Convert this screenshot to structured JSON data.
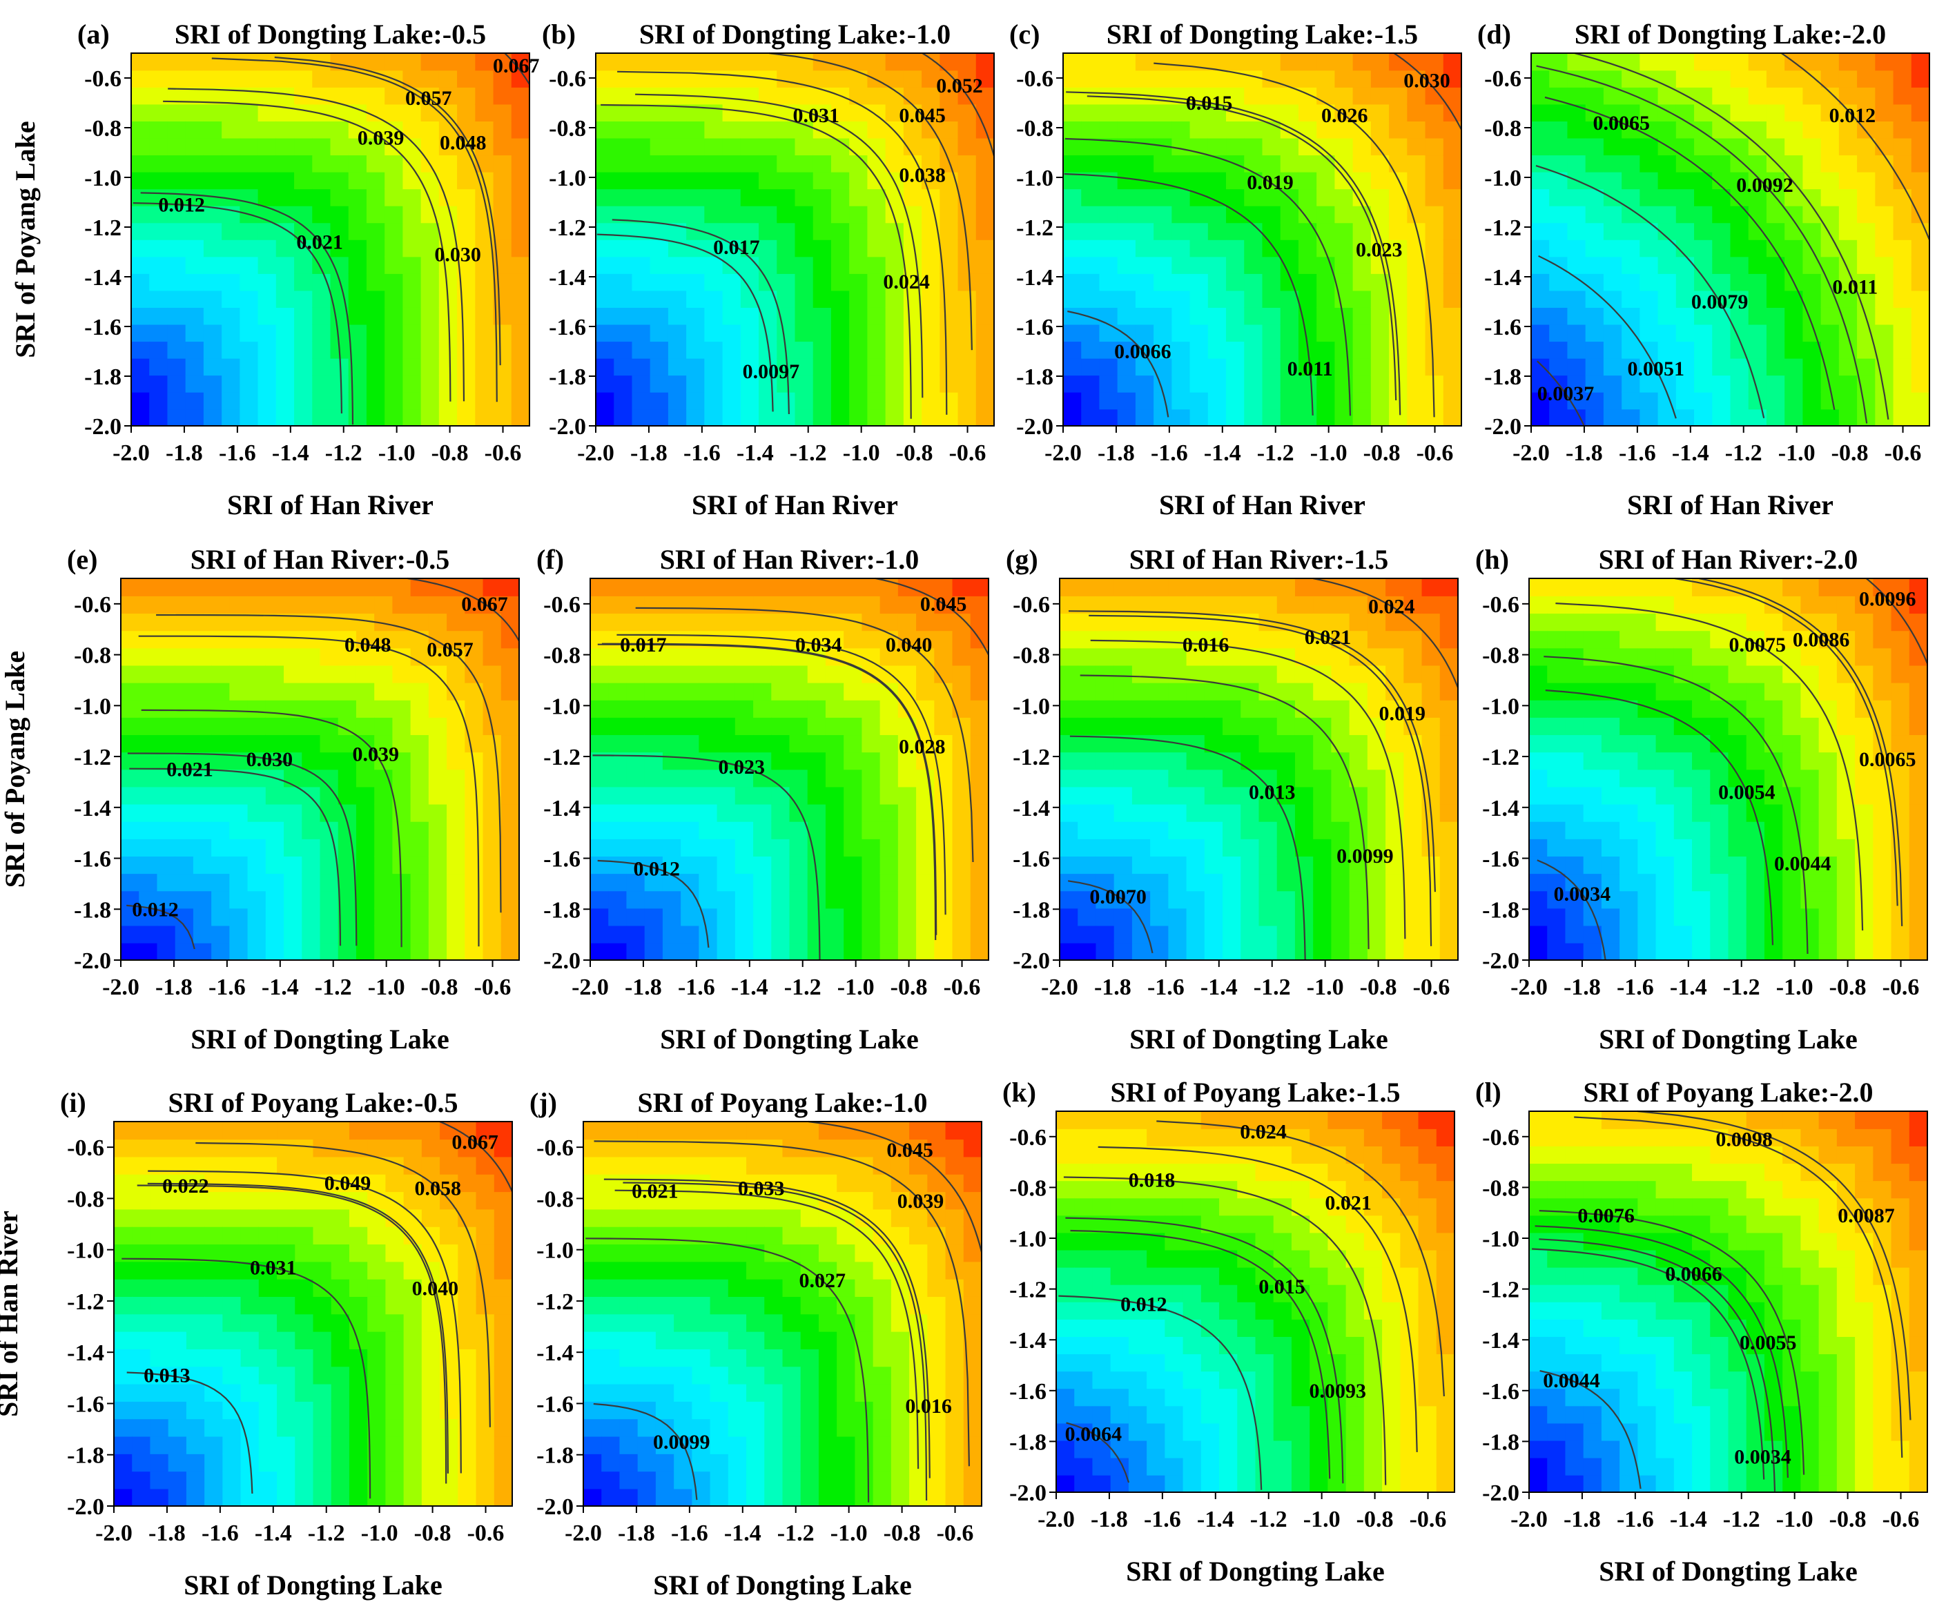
{
  "figure": {
    "background": "#ffffff",
    "colormap": [
      "#0000ff",
      "#0066ff",
      "#00ccff",
      "#00ffff",
      "#00ff99",
      "#00ee00",
      "#66ff00",
      "#ffff00",
      "#ffbb00",
      "#ff7700",
      "#ff0000"
    ]
  },
  "chart_data": [
    {
      "type": "contour",
      "panel_label": "(a)",
      "title": "SRI of Dongting Lake:-0.5",
      "xlabel": "SRI of Han River",
      "ylabel": "SRI of Poyang Lake",
      "xlim": [
        -2.0,
        -0.5
      ],
      "ylim": [
        -2.0,
        -0.5
      ],
      "xticks": [
        "-2.0",
        "-1.8",
        "-1.6",
        "-1.4",
        "-1.2",
        "-1.0",
        "-0.8",
        "-0.6"
      ],
      "yticks": [
        "-0.6",
        "-0.8",
        "-1.0",
        "-1.2",
        "-1.4",
        "-1.6",
        "-1.8",
        "-2.0"
      ],
      "contour_labels": [
        {
          "text": "0.067",
          "x": -0.55,
          "y": -0.55
        },
        {
          "text": "0.057",
          "x": -0.88,
          "y": -0.68
        },
        {
          "text": "0.048",
          "x": -0.75,
          "y": -0.86
        },
        {
          "text": "0.039",
          "x": -1.06,
          "y": -0.84
        },
        {
          "text": "0.030",
          "x": -0.77,
          "y": -1.31
        },
        {
          "text": "0.021",
          "x": -1.29,
          "y": -1.26
        },
        {
          "text": "0.012",
          "x": -1.81,
          "y": -1.11
        }
      ],
      "value_min": 0.003,
      "value_max": 0.072,
      "shape": {
        "a": 0.42,
        "b": 0.35,
        "p": 6.0
      }
    },
    {
      "type": "contour",
      "panel_label": "(b)",
      "title": "SRI of Dongting Lake:-1.0",
      "xlabel": "SRI of Han River",
      "ylabel": "",
      "xlim": [
        -2.0,
        -0.5
      ],
      "ylim": [
        -2.0,
        -0.5
      ],
      "xticks": [
        "-2.0",
        "-1.8",
        "-1.6",
        "-1.4",
        "-1.2",
        "-1.0",
        "-0.8",
        "-0.6"
      ],
      "yticks": [
        "-0.6",
        "-0.8",
        "-1.0",
        "-1.2",
        "-1.4",
        "-1.6",
        "-1.8",
        "-2.0"
      ],
      "contour_labels": [
        {
          "text": "0.052",
          "x": -0.63,
          "y": -0.63
        },
        {
          "text": "0.045",
          "x": -0.77,
          "y": -0.75
        },
        {
          "text": "0.031",
          "x": -1.17,
          "y": -0.75
        },
        {
          "text": "0.038",
          "x": -0.77,
          "y": -0.99
        },
        {
          "text": "0.017",
          "x": -1.47,
          "y": -1.28
        },
        {
          "text": "0.024",
          "x": -0.83,
          "y": -1.42
        },
        {
          "text": "0.0097",
          "x": -1.34,
          "y": -1.78
        }
      ],
      "value_min": 0.003,
      "value_max": 0.056,
      "shape": {
        "a": 0.45,
        "b": 0.38,
        "p": 6.0
      }
    },
    {
      "type": "contour",
      "panel_label": "(c)",
      "title": "SRI of Dongting Lake:-1.5",
      "xlabel": "SRI of Han River",
      "ylabel": "",
      "xlim": [
        -2.0,
        -0.5
      ],
      "ylim": [
        -2.0,
        -0.5
      ],
      "xticks": [
        "-2.0",
        "-1.8",
        "-1.6",
        "-1.4",
        "-1.2",
        "-1.0",
        "-0.8",
        "-0.6"
      ],
      "yticks": [
        "-0.6",
        "-0.8",
        "-1.0",
        "-1.2",
        "-1.4",
        "-1.6",
        "-1.8",
        "-2.0"
      ],
      "contour_labels": [
        {
          "text": "0.030",
          "x": -0.63,
          "y": -0.61
        },
        {
          "text": "0.026",
          "x": -0.94,
          "y": -0.75
        },
        {
          "text": "0.015",
          "x": -1.45,
          "y": -0.7
        },
        {
          "text": "0.019",
          "x": -1.22,
          "y": -1.02
        },
        {
          "text": "0.023",
          "x": -0.81,
          "y": -1.29
        },
        {
          "text": "0.0066",
          "x": -1.7,
          "y": -1.7
        },
        {
          "text": "0.011",
          "x": -1.07,
          "y": -1.77
        }
      ],
      "value_min": 0.002,
      "value_max": 0.033,
      "shape": {
        "a": 0.5,
        "b": 0.45,
        "p": 5.0
      }
    },
    {
      "type": "contour",
      "panel_label": "(d)",
      "title": "SRI of Dongting Lake:-2.0",
      "xlabel": "SRI of Han River",
      "ylabel": "",
      "xlim": [
        -2.0,
        -0.5
      ],
      "ylim": [
        -2.0,
        -0.5
      ],
      "xticks": [
        "-2.0",
        "-1.8",
        "-1.6",
        "-1.4",
        "-1.2",
        "-1.0",
        "-0.8",
        "-0.6"
      ],
      "yticks": [
        "-0.6",
        "-0.8",
        "-1.0",
        "-1.2",
        "-1.4",
        "-1.6",
        "-1.8",
        "-2.0"
      ],
      "contour_labels": [
        {
          "text": "0.012",
          "x": -0.79,
          "y": -0.75
        },
        {
          "text": "0.0065",
          "x": -1.66,
          "y": -0.78
        },
        {
          "text": "0.0092",
          "x": -1.12,
          "y": -1.03
        },
        {
          "text": "0.011",
          "x": -0.78,
          "y": -1.44
        },
        {
          "text": "0.0079",
          "x": -1.29,
          "y": -1.5
        },
        {
          "text": "0.0051",
          "x": -1.53,
          "y": -1.77
        },
        {
          "text": "0.0037",
          "x": -1.87,
          "y": -1.87
        }
      ],
      "value_min": 0.002,
      "value_max": 0.0135,
      "shape": {
        "a": 0.7,
        "b": 0.55,
        "p": 3.0
      }
    },
    {
      "type": "contour",
      "panel_label": "(e)",
      "title": "SRI of Han River:-0.5",
      "xlabel": "SRI of Dongting Lake",
      "ylabel": "SRI of Poyang Lake",
      "xlim": [
        -2.0,
        -0.5
      ],
      "ylim": [
        -2.0,
        -0.5
      ],
      "xticks": [
        "-2.0",
        "-1.8",
        "-1.6",
        "-1.4",
        "-1.2",
        "-1.0",
        "-0.8",
        "-0.6"
      ],
      "yticks": [
        "-0.6",
        "-0.8",
        "-1.0",
        "-1.2",
        "-1.4",
        "-1.6",
        "-1.8",
        "-2.0"
      ],
      "contour_labels": [
        {
          "text": "0.067",
          "x": -0.63,
          "y": -0.6
        },
        {
          "text": "0.048",
          "x": -1.07,
          "y": -0.76
        },
        {
          "text": "0.057",
          "x": -0.76,
          "y": -0.78
        },
        {
          "text": "0.021",
          "x": -1.74,
          "y": -1.25
        },
        {
          "text": "0.030",
          "x": -1.44,
          "y": -1.21
        },
        {
          "text": "0.039",
          "x": -1.04,
          "y": -1.19
        },
        {
          "text": "0.012",
          "x": -1.87,
          "y": -1.8
        }
      ],
      "value_min": 0.003,
      "value_max": 0.072,
      "shape": {
        "a": 0.35,
        "b": 0.4,
        "p": 8.0
      }
    },
    {
      "type": "contour",
      "panel_label": "(f)",
      "title": "SRI of Han River:-1.0",
      "xlabel": "SRI of Dongting Lake",
      "ylabel": "",
      "xlim": [
        -2.0,
        -0.5
      ],
      "ylim": [
        -2.0,
        -0.5
      ],
      "xticks": [
        "-2.0",
        "-1.8",
        "-1.6",
        "-1.4",
        "-1.2",
        "-1.0",
        "-0.8",
        "-0.6"
      ],
      "yticks": [
        "-0.6",
        "-0.8",
        "-1.0",
        "-1.2",
        "-1.4",
        "-1.6",
        "-1.8",
        "-2.0"
      ],
      "contour_labels": [
        {
          "text": "0.045",
          "x": -0.67,
          "y": -0.6
        },
        {
          "text": "0.017",
          "x": -1.8,
          "y": -0.76
        },
        {
          "text": "0.034",
          "x": -1.14,
          "y": -0.76
        },
        {
          "text": "0.040",
          "x": -0.8,
          "y": -0.76
        },
        {
          "text": "0.023",
          "x": -1.43,
          "y": -1.24
        },
        {
          "text": "0.028",
          "x": -0.75,
          "y": -1.16
        },
        {
          "text": "0.012",
          "x": -1.75,
          "y": -1.64
        }
      ],
      "value_min": 0.003,
      "value_max": 0.049,
      "shape": {
        "a": 0.38,
        "b": 0.42,
        "p": 7.0
      }
    },
    {
      "type": "contour",
      "panel_label": "(g)",
      "title": "SRI of Han River:-1.5",
      "xlabel": "SRI of Dongting Lake",
      "ylabel": "",
      "xlim": [
        -2.0,
        -0.5
      ],
      "ylim": [
        -2.0,
        -0.5
      ],
      "xticks": [
        "-2.0",
        "-1.8",
        "-1.6",
        "-1.4",
        "-1.2",
        "-1.0",
        "-0.8",
        "-0.6"
      ],
      "yticks": [
        "-0.6",
        "-0.8",
        "-1.0",
        "-1.2",
        "-1.4",
        "-1.6",
        "-1.8",
        "-2.0"
      ],
      "contour_labels": [
        {
          "text": "0.024",
          "x": -0.75,
          "y": -0.61
        },
        {
          "text": "0.021",
          "x": -0.99,
          "y": -0.73
        },
        {
          "text": "0.016",
          "x": -1.45,
          "y": -0.76
        },
        {
          "text": "0.019",
          "x": -0.71,
          "y": -1.03
        },
        {
          "text": "0.013",
          "x": -1.2,
          "y": -1.34
        },
        {
          "text": "0.0099",
          "x": -0.85,
          "y": -1.59
        },
        {
          "text": "0.0070",
          "x": -1.78,
          "y": -1.75
        }
      ],
      "value_min": 0.003,
      "value_max": 0.027,
      "shape": {
        "a": 0.42,
        "b": 0.45,
        "p": 6.0
      }
    },
    {
      "type": "contour",
      "panel_label": "(h)",
      "title": "SRI of Han River:-2.0",
      "xlabel": "SRI of Dongting Lake",
      "ylabel": "",
      "xlim": [
        -2.0,
        -0.5
      ],
      "ylim": [
        -2.0,
        -0.5
      ],
      "xticks": [
        "-2.0",
        "-1.8",
        "-1.6",
        "-1.4",
        "-1.2",
        "-1.0",
        "-0.8",
        "-0.6"
      ],
      "yticks": [
        "-0.6",
        "-0.8",
        "-1.0",
        "-1.2",
        "-1.4",
        "-1.6",
        "-1.8",
        "-2.0"
      ],
      "contour_labels": [
        {
          "text": "0.0096",
          "x": -0.65,
          "y": -0.58
        },
        {
          "text": "0.0075",
          "x": -1.14,
          "y": -0.76
        },
        {
          "text": "0.0086",
          "x": -0.9,
          "y": -0.74
        },
        {
          "text": "0.0054",
          "x": -1.18,
          "y": -1.34
        },
        {
          "text": "0.0065",
          "x": -0.65,
          "y": -1.21
        },
        {
          "text": "0.0044",
          "x": -0.97,
          "y": -1.62
        },
        {
          "text": "0.0034",
          "x": -1.8,
          "y": -1.74
        }
      ],
      "value_min": 0.002,
      "value_max": 0.0105,
      "shape": {
        "a": 0.55,
        "b": 0.45,
        "p": 5.0
      }
    },
    {
      "type": "contour",
      "panel_label": "(i)",
      "title": "SRI of Poyang Lake:-0.5",
      "xlabel": "SRI of Dongting Lake",
      "ylabel": "SRI of Han River",
      "xlim": [
        -2.0,
        -0.5
      ],
      "ylim": [
        -2.0,
        -0.5
      ],
      "xticks": [
        "-2.0",
        "-1.8",
        "-1.6",
        "-1.4",
        "-1.2",
        "-1.0",
        "-0.8",
        "-0.6"
      ],
      "yticks": [
        "-0.6",
        "-0.8",
        "-1.0",
        "-1.2",
        "-1.4",
        "-1.6",
        "-1.8",
        "-2.0"
      ],
      "contour_labels": [
        {
          "text": "0.067",
          "x": -0.64,
          "y": -0.58
        },
        {
          "text": "0.022",
          "x": -1.73,
          "y": -0.75
        },
        {
          "text": "0.049",
          "x": -1.12,
          "y": -0.74
        },
        {
          "text": "0.058",
          "x": -0.78,
          "y": -0.76
        },
        {
          "text": "0.031",
          "x": -1.4,
          "y": -1.07
        },
        {
          "text": "0.040",
          "x": -0.79,
          "y": -1.15
        },
        {
          "text": "0.013",
          "x": -1.8,
          "y": -1.49
        }
      ],
      "value_min": 0.003,
      "value_max": 0.072,
      "shape": {
        "a": 0.38,
        "b": 0.38,
        "p": 7.0
      }
    },
    {
      "type": "contour",
      "panel_label": "(j)",
      "title": "SRI of Poyang Lake:-1.0",
      "xlabel": "SRI of Dongting Lake",
      "ylabel": "",
      "xlim": [
        -2.0,
        -0.5
      ],
      "ylim": [
        -2.0,
        -0.5
      ],
      "xticks": [
        "-2.0",
        "-1.8",
        "-1.6",
        "-1.4",
        "-1.2",
        "-1.0",
        "-0.8",
        "-0.6"
      ],
      "yticks": [
        "-0.6",
        "-0.8",
        "-1.0",
        "-1.2",
        "-1.4",
        "-1.6",
        "-1.8",
        "-2.0"
      ],
      "contour_labels": [
        {
          "text": "0.045",
          "x": -0.77,
          "y": -0.61
        },
        {
          "text": "0.021",
          "x": -1.73,
          "y": -0.77
        },
        {
          "text": "0.033",
          "x": -1.33,
          "y": -0.76
        },
        {
          "text": "0.039",
          "x": -0.73,
          "y": -0.81
        },
        {
          "text": "0.027",
          "x": -1.1,
          "y": -1.12
        },
        {
          "text": "0.016",
          "x": -0.7,
          "y": -1.61
        },
        {
          "text": "0.0099",
          "x": -1.63,
          "y": -1.75
        }
      ],
      "value_min": 0.003,
      "value_max": 0.049,
      "shape": {
        "a": 0.4,
        "b": 0.42,
        "p": 6.5
      }
    },
    {
      "type": "contour",
      "panel_label": "(k)",
      "title": "SRI of Poyang Lake:-1.5",
      "xlabel": "SRI of Dongting Lake",
      "ylabel": "",
      "xlim": [
        -2.0,
        -0.5
      ],
      "ylim": [
        -2.0,
        -0.5
      ],
      "xticks": [
        "-2.0",
        "-1.8",
        "-1.6",
        "-1.4",
        "-1.2",
        "-1.0",
        "-0.8",
        "-0.6"
      ],
      "yticks": [
        "-0.6",
        "-0.8",
        "-1.0",
        "-1.2",
        "-1.4",
        "-1.6",
        "-1.8",
        "-2.0"
      ],
      "contour_labels": [
        {
          "text": "0.024",
          "x": -1.22,
          "y": -0.58
        },
        {
          "text": "0.018",
          "x": -1.64,
          "y": -0.77
        },
        {
          "text": "0.021",
          "x": -0.9,
          "y": -0.86
        },
        {
          "text": "0.015",
          "x": -1.15,
          "y": -1.19
        },
        {
          "text": "0.012",
          "x": -1.67,
          "y": -1.26
        },
        {
          "text": "0.0093",
          "x": -0.94,
          "y": -1.6
        },
        {
          "text": "0.0064",
          "x": -1.86,
          "y": -1.77
        }
      ],
      "value_min": 0.003,
      "value_max": 0.027,
      "shape": {
        "a": 0.45,
        "b": 0.45,
        "p": 5.5
      }
    },
    {
      "type": "contour",
      "panel_label": "(l)",
      "title": "SRI of Poyang Lake:-2.0",
      "xlabel": "SRI of Dongting Lake",
      "ylabel": "",
      "xlim": [
        -2.0,
        -0.5
      ],
      "ylim": [
        -2.0,
        -0.5
      ],
      "xticks": [
        "-2.0",
        "-1.8",
        "-1.6",
        "-1.4",
        "-1.2",
        "-1.0",
        "-0.8",
        "-0.6"
      ],
      "yticks": [
        "-0.6",
        "-0.8",
        "-1.0",
        "-1.2",
        "-1.4",
        "-1.6",
        "-1.8",
        "-2.0"
      ],
      "contour_labels": [
        {
          "text": "0.0098",
          "x": -1.19,
          "y": -0.61
        },
        {
          "text": "0.0076",
          "x": -1.71,
          "y": -0.91
        },
        {
          "text": "0.0087",
          "x": -0.73,
          "y": -0.91
        },
        {
          "text": "0.0066",
          "x": -1.38,
          "y": -1.14
        },
        {
          "text": "0.0055",
          "x": -1.1,
          "y": -1.41
        },
        {
          "text": "0.0044",
          "x": -1.84,
          "y": -1.56
        },
        {
          "text": "0.0034",
          "x": -1.12,
          "y": -1.86
        }
      ],
      "value_min": 0.002,
      "value_max": 0.0105,
      "shape": {
        "a": 0.5,
        "b": 0.45,
        "p": 5.0
      }
    }
  ]
}
